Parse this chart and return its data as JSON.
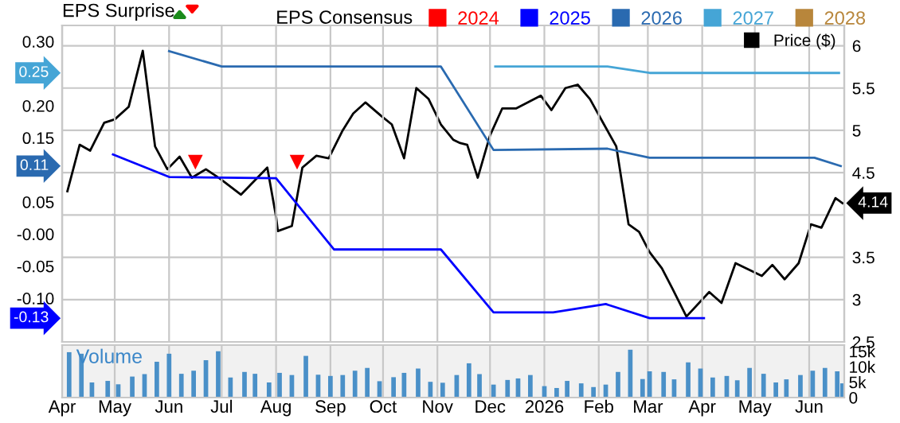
{
  "chart_data": [
    {
      "type": "line",
      "title": "EPS Surprise",
      "legend_title": "EPS Consensus",
      "xlim": [
        "2025-04-01",
        "2026-06-21"
      ],
      "xticks": [
        {
          "value": "2025-04-01",
          "label": null
        },
        {
          "value": "2025-05-01",
          "label": null
        },
        {
          "value": "2025-06-01",
          "label": null
        },
        {
          "value": "2025-07-01",
          "label": null
        },
        {
          "value": "2025-08-01",
          "label": null
        },
        {
          "value": "2025-09-01",
          "label": null
        },
        {
          "value": "2025-10-01",
          "label": null
        },
        {
          "value": "2025-11-01",
          "label": null
        },
        {
          "value": "2025-12-01",
          "label": null
        },
        {
          "value": "2026-01-01",
          "label": null
        },
        {
          "value": "2026-02-01",
          "label": null
        },
        {
          "value": "2026-03-01",
          "label": null
        },
        {
          "value": "2026-04-01",
          "label": null
        },
        {
          "value": "2026-05-01",
          "label": null
        },
        {
          "value": "2026-06-01",
          "label": null
        }
      ],
      "ylim": [
        -0.168,
        0.325
      ],
      "yticks": [
        {
          "value": 0.3,
          "label": "0.30"
        },
        {
          "value": 0.2,
          "label": "0.20"
        },
        {
          "value": 0.15,
          "label": "0.15"
        },
        {
          "value": 0.05,
          "label": "0.05"
        },
        {
          "value": 0,
          "label": "-0.00"
        },
        {
          "value": -0.05,
          "label": "-0.05"
        },
        {
          "value": -0.1,
          "label": "-0.10"
        }
      ],
      "y2lim": [
        2.5,
        6.24
      ],
      "y2ticks": [
        6,
        5.5,
        5,
        4.5,
        {
          "value": 4,
          "label": null
        },
        3.5,
        3,
        2.5
      ],
      "grid": true,
      "legend": "top right",
      "tick_labels": "y",
      "series": [
        {
          "name": "Price ($)",
          "type": "line",
          "axis": "y2",
          "color": "#000000",
          "x": [
            "2025-04-04",
            "2025-04-11",
            "2025-04-17",
            "2025-04-25",
            "2025-05-01",
            "2025-05-09",
            "2025-05-17",
            "2025-05-24",
            "2025-05-31",
            "2025-06-07",
            "2025-06-14",
            "2025-06-22",
            "2025-06-30",
            "2025-07-12",
            "2025-07-27",
            "2025-08-01",
            "2025-08-02",
            "2025-08-10",
            "2025-08-16",
            "2025-08-24",
            "2025-08-31",
            "2025-09-08",
            "2025-09-14",
            "2025-09-21",
            "2025-09-30",
            "2025-10-06",
            "2025-10-13",
            "2025-10-20",
            "2025-10-27",
            "2025-11-03",
            "2025-11-10",
            "2025-11-14",
            "2025-11-18",
            "2025-11-24",
            "2025-12-01",
            "2025-12-08",
            "2025-12-16",
            "2025-12-30",
            "2026-01-05",
            "2026-01-13",
            "2026-01-20",
            "2026-01-27",
            "2026-02-04",
            "2026-02-11",
            "2026-02-18",
            "2026-02-24",
            "2026-03-02",
            "2026-03-09",
            "2026-03-15",
            "2026-03-23",
            "2026-04-05",
            "2026-04-12",
            "2026-04-20",
            "2026-05-05",
            "2026-05-11",
            "2026-05-18",
            "2026-05-26",
            "2026-06-02",
            "2026-06-08",
            "2026-06-16",
            "2026-06-20"
          ],
          "values": [
            4.28,
            4.83,
            4.76,
            5.09,
            5.13,
            5.28,
            5.94,
            4.81,
            4.54,
            4.69,
            4.44,
            4.54,
            4.43,
            4.24,
            4.56,
            3.98,
            3.81,
            3.87,
            4.56,
            4.7,
            4.67,
            5.0,
            5.2,
            5.33,
            5.17,
            5.07,
            4.67,
            5.5,
            5.37,
            5.07,
            4.89,
            4.85,
            4.83,
            4.44,
            4.94,
            5.26,
            5.26,
            5.41,
            5.24,
            5.5,
            5.54,
            5.37,
            5.07,
            4.81,
            3.89,
            3.8,
            3.56,
            3.37,
            3.13,
            2.8,
            3.09,
            2.96,
            3.43,
            3.28,
            3.41,
            3.24,
            3.43,
            3.89,
            3.85,
            4.2,
            4.14
          ],
          "value_labels": [
            null,
            null,
            null,
            null,
            null,
            null,
            null,
            null,
            null,
            null,
            null,
            null,
            null,
            null,
            null,
            null,
            null,
            null,
            null,
            null,
            null,
            null,
            null,
            null,
            null,
            null,
            null,
            null,
            null,
            null,
            null,
            null,
            null,
            null,
            null,
            null,
            null,
            null,
            null,
            null,
            null,
            null,
            null,
            null,
            null,
            null,
            null,
            null,
            null,
            null,
            null,
            null,
            null,
            null,
            null,
            null,
            null,
            null,
            null,
            null,
            "4.14"
          ]
        },
        {
          "name": "2024",
          "type": "line",
          "color": "#ff0000"
        },
        {
          "name": "2025",
          "type": "line",
          "color": "#0000ff",
          "x": [
            "2025-04-30",
            "2025-06-01",
            "2025-08-01",
            "2025-09-03",
            "2025-11-03",
            "2025-12-03",
            "2026-01-06",
            "2026-02-05",
            "2026-03-02",
            "2026-04-02"
          ],
          "values": [
            0.124,
            0.089,
            0.087,
            -0.024,
            -0.024,
            -0.122,
            -0.122,
            -0.109,
            -0.131,
            -0.131
          ]
        },
        {
          "name": "2026",
          "type": "line",
          "color": "#2a6ab0",
          "x": [
            "2025-06-01",
            "2025-07-01",
            "2025-11-03",
            "2025-12-03",
            "2026-02-06",
            "2026-03-02",
            "2026-06-04",
            "2026-06-19"
          ],
          "values": [
            0.285,
            0.261,
            0.261,
            0.131,
            0.133,
            0.119,
            0.119,
            0.106
          ]
        },
        {
          "name": "2027",
          "type": "line",
          "color": "#45a5d6",
          "x": [
            "2025-12-04",
            "2026-02-06",
            "2026-03-02",
            "2026-06-18"
          ],
          "values": [
            0.261,
            0.261,
            0.251,
            0.251
          ]
        },
        {
          "name": "2028",
          "type": "line",
          "color": "#b8863b"
        },
        {
          "type": "scatter",
          "color": "#ff0000",
          "marker": "triangle",
          "x": [
            "2025-06-16",
            "2025-08-13"
          ],
          "values": [
            0.112,
            0.112
          ]
        }
      ],
      "annotations": [
        "0.25",
        "0.11",
        "-0.13"
      ]
    },
    {
      "type": "bar",
      "title": "Volume",
      "color": "#4a90c8",
      "xlim": [
        "2025-04-01",
        "2026-06-21"
      ],
      "xticks": [
        {
          "value": "2025-04-01",
          "label": "Apr"
        },
        {
          "value": "2025-05-01",
          "label": "May"
        },
        {
          "value": "2025-06-01",
          "label": "Jun"
        },
        {
          "value": "2025-07-01",
          "label": "Jul"
        },
        {
          "value": "2025-08-01",
          "label": "Aug"
        },
        {
          "value": "2025-09-01",
          "label": "Sep"
        },
        {
          "value": "2025-10-01",
          "label": "Oct"
        },
        {
          "value": "2025-11-01",
          "label": "Nov"
        },
        {
          "value": "2025-12-01",
          "label": "Dec"
        },
        {
          "value": "2026-01-01",
          "label": "2026"
        },
        {
          "value": "2026-02-01",
          "label": "Feb"
        },
        {
          "value": "2026-03-01",
          "label": "Mar"
        },
        {
          "value": "2026-04-01",
          "label": "Apr"
        },
        {
          "value": "2026-05-01",
          "label": "May"
        },
        {
          "value": "2026-06-01",
          "label": "Jun"
        }
      ],
      "ylim": [
        0,
        17000
      ],
      "yticks": [
        0,
        {
          "value": 5000,
          "label": "5k"
        },
        {
          "value": 10000,
          "label": "10k"
        },
        {
          "value": 15000,
          "label": "15k"
        }
      ],
      "grid": "x",
      "x": [
        "2025-04-05",
        "2025-04-12",
        "2025-04-18",
        "2025-04-27",
        "2025-05-03",
        "2025-05-11",
        "2025-05-18",
        "2025-05-25",
        "2025-06-01",
        "2025-06-08",
        "2025-06-15",
        "2025-06-22",
        "2025-06-29",
        "2025-07-06",
        "2025-07-14",
        "2025-07-20",
        "2025-07-28",
        "2025-08-03",
        "2025-08-10",
        "2025-08-18",
        "2025-08-25",
        "2025-09-01",
        "2025-09-08",
        "2025-09-15",
        "2025-09-22",
        "2025-09-29",
        "2025-10-07",
        "2025-10-13",
        "2025-10-21",
        "2025-10-28",
        "2025-11-04",
        "2025-11-12",
        "2025-11-19",
        "2025-11-25",
        "2025-12-03",
        "2025-12-11",
        "2025-12-17",
        "2025-12-24",
        "2026-01-01",
        "2026-01-08",
        "2026-01-14",
        "2026-01-22",
        "2026-01-29",
        "2026-02-05",
        "2026-02-12",
        "2026-02-19",
        "2026-02-26",
        "2026-03-02",
        "2026-03-10",
        "2026-03-16",
        "2026-03-24",
        "2026-03-31",
        "2026-04-07",
        "2026-04-15",
        "2026-04-21",
        "2026-04-28",
        "2026-05-06",
        "2026-05-13",
        "2026-05-19",
        "2026-05-27",
        "2026-06-03",
        "2026-06-10",
        "2026-06-17",
        "2026-06-20"
      ],
      "values": [
        14700,
        14200,
        4900,
        5400,
        4300,
        6800,
        7600,
        11600,
        14200,
        7700,
        8700,
        12100,
        15000,
        6500,
        8300,
        7700,
        4900,
        8000,
        7300,
        13500,
        7400,
        7000,
        7300,
        8700,
        9600,
        5300,
        6600,
        8000,
        9400,
        5100,
        4800,
        7300,
        11100,
        7600,
        4200,
        5700,
        6200,
        7300,
        3700,
        3100,
        5400,
        4600,
        3400,
        4200,
        8300,
        15500,
        6000,
        8500,
        8300,
        5900,
        11400,
        9400,
        6500,
        7000,
        5600,
        9600,
        7700,
        4900,
        5900,
        7300,
        8700,
        9600,
        8500,
        4600
      ]
    }
  ]
}
